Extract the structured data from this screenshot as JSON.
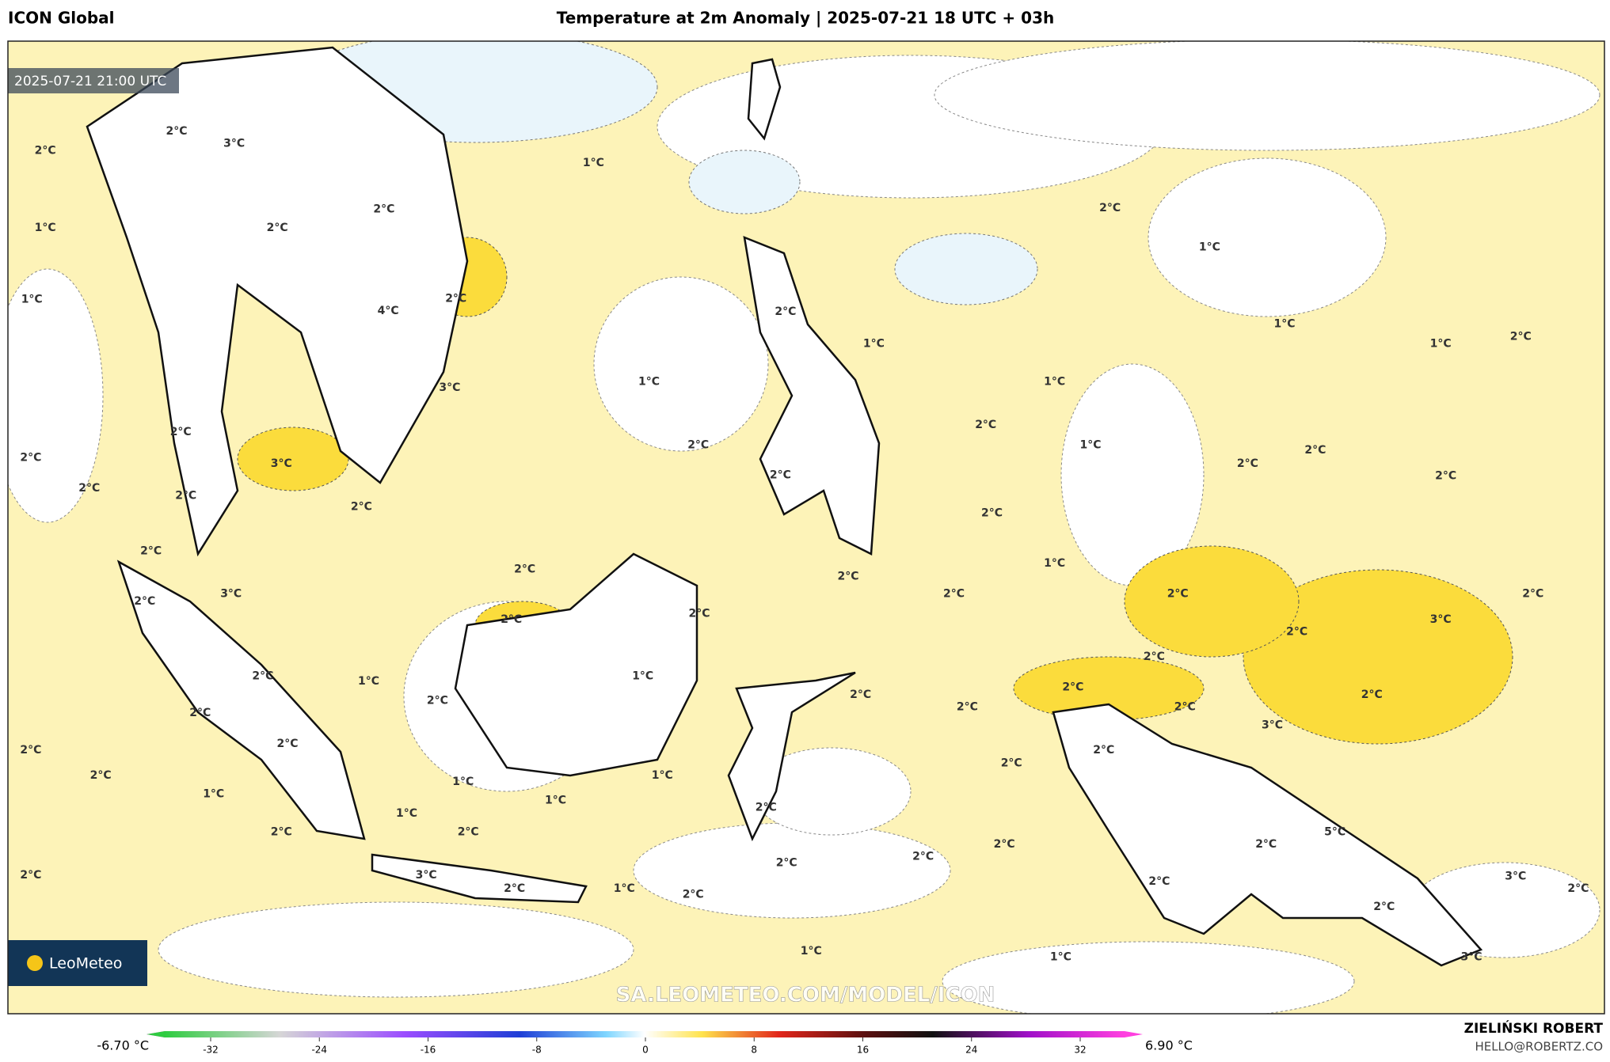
{
  "header": {
    "model": "ICON Global",
    "title": "Temperature at 2m Anomaly | 2025-07-21 18 UTC + 03h"
  },
  "map": {
    "timestamp": "2025-07-21 21:00 UTC",
    "logo": "LeoMeteo",
    "watermark": "SA.LEOMETEO.COM/MODEL/ICON",
    "labels": [
      "2°C",
      "3°C",
      "2°C",
      "1°C",
      "1°C",
      "2°C",
      "2°C",
      "2°C",
      "1°C",
      "1°C",
      "2°C",
      "4°C",
      "2°C",
      "1°C",
      "1°C",
      "1°C",
      "2°C",
      "1°C",
      "3°C",
      "1°C",
      "2°C",
      "2°C",
      "1°C",
      "2°C",
      "2°C",
      "3°C",
      "2°C",
      "2°C",
      "2°C",
      "2°C",
      "2°C",
      "2°C",
      "2°C",
      "2°C",
      "2°C",
      "2°C",
      "1°C",
      "2°C",
      "3°C",
      "2°C",
      "2°C",
      "2°C",
      "2°C",
      "3°C",
      "2°C",
      "2°C",
      "2°C",
      "2°C",
      "2°C",
      "1°C",
      "1°C",
      "2°C",
      "2°C",
      "2°C",
      "2°C",
      "2°C",
      "2°C",
      "2°C",
      "3°C",
      "2°C",
      "2°C",
      "2°C",
      "2°C",
      "2°C",
      "1°C",
      "1°C",
      "1°C",
      "1°C",
      "2°C",
      "1°C",
      "2°C",
      "2°C",
      "5°C",
      "2°C",
      "2°C",
      "2°C",
      "2°C",
      "3°C",
      "3°C",
      "2°C",
      "2°C",
      "1°C",
      "2°C",
      "2°C",
      "2°C",
      "2°C",
      "1°C",
      "1°C",
      "3°C"
    ]
  },
  "colorbar": {
    "min_label": "-6.70 °C",
    "max_label": "6.90 °C",
    "ticks": [
      -32,
      -24,
      -16,
      -8,
      0,
      8,
      16,
      24,
      32
    ]
  },
  "footer": {
    "author": "ZIELIŃSKI ROBERT",
    "email": "HELLO@ROBERTZ.CO"
  }
}
